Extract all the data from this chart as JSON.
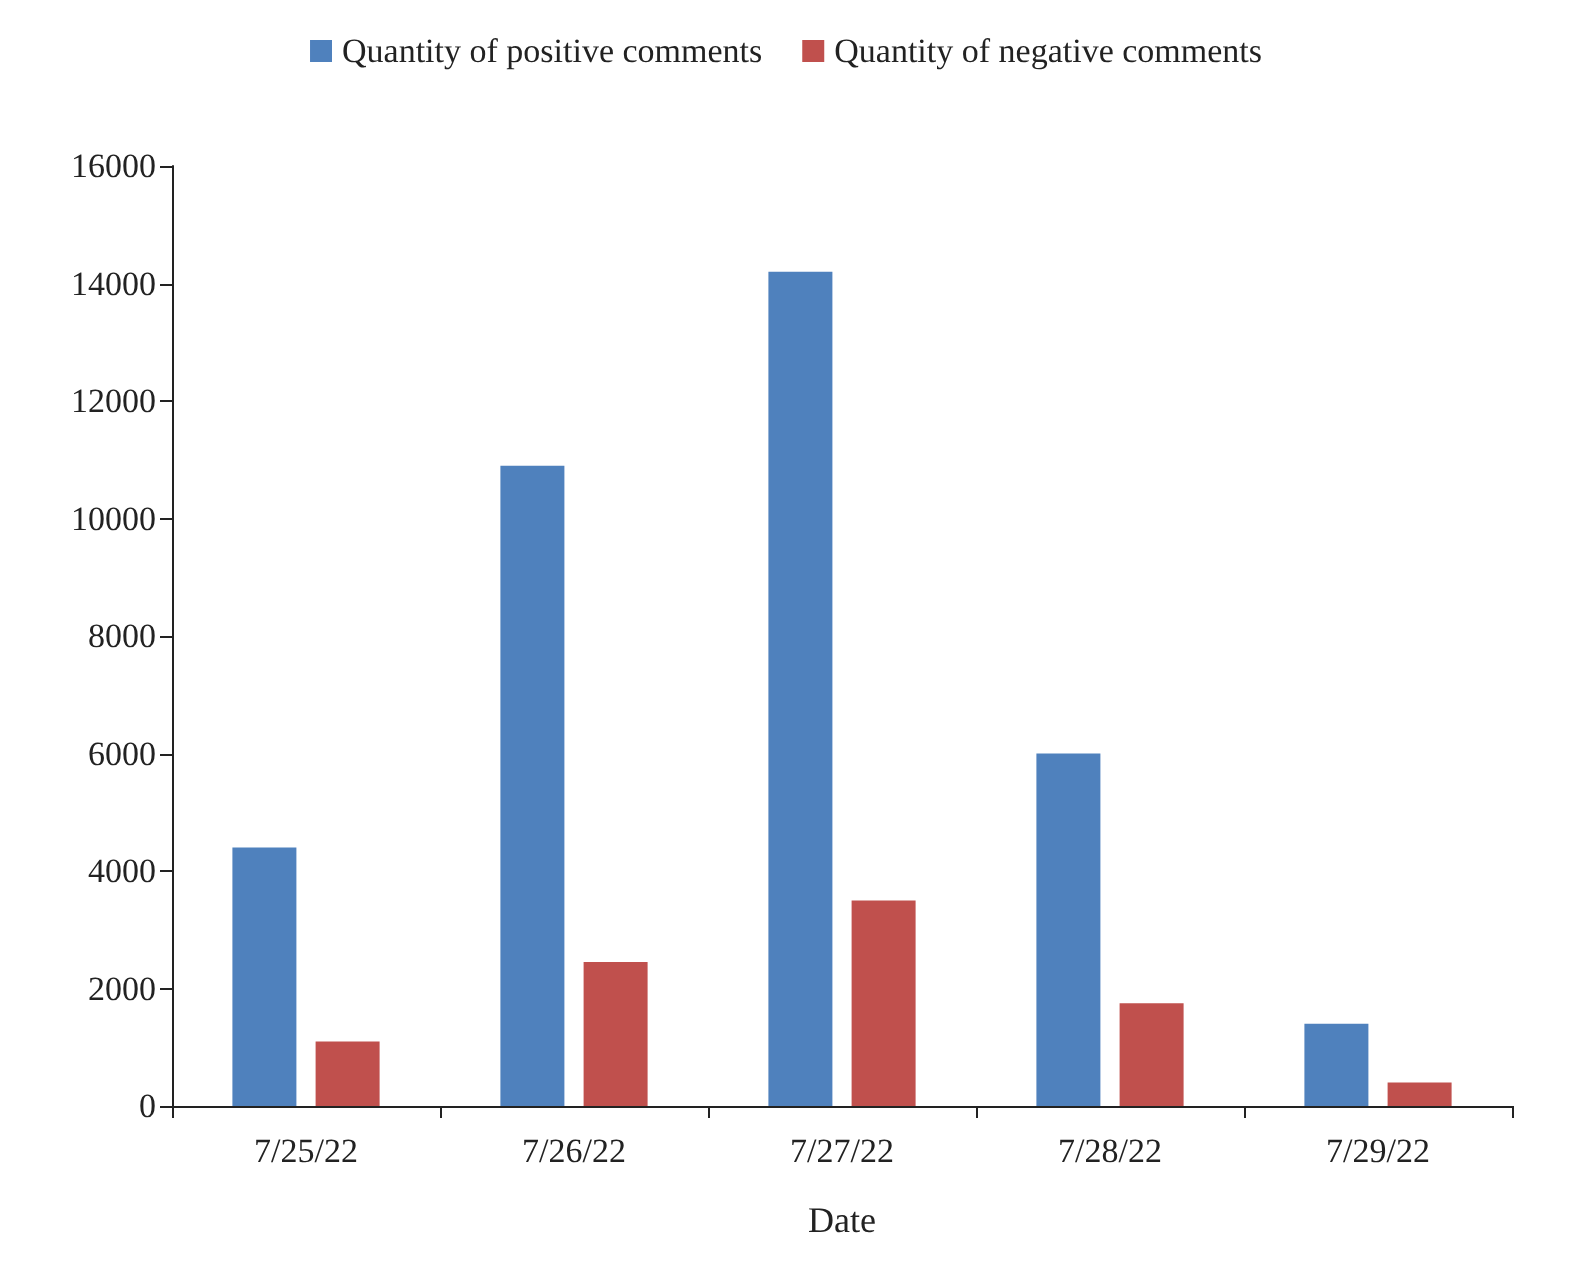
{
  "chart_data": {
    "type": "bar",
    "xlabel": "Date",
    "categories": [
      "7/25/22",
      "7/26/22",
      "7/27/22",
      "7/28/22",
      "7/29/22"
    ],
    "series": [
      {
        "name": "Quantity of positive comments",
        "color": "#4f81bd",
        "values": [
          4400,
          10900,
          14200,
          6000,
          1400
        ]
      },
      {
        "name": "Quantity of negative comments",
        "color": "#c0504d",
        "values": [
          1100,
          2450,
          3500,
          1750,
          400
        ]
      }
    ],
    "ylim": [
      0,
      16000
    ],
    "yticks": [
      0,
      2000,
      4000,
      6000,
      8000,
      10000,
      12000,
      14000,
      16000
    ],
    "grid": false,
    "legend": "top"
  }
}
